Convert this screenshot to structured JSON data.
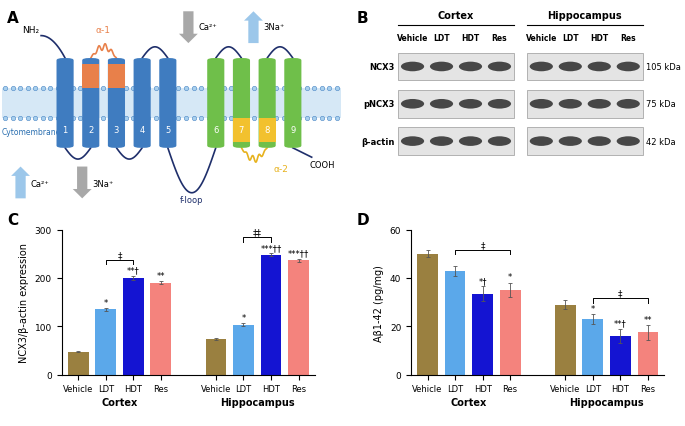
{
  "diagram": {
    "panel_label": "A",
    "n_terminus": "NH₂",
    "c_terminus": "COOH",
    "membrane": "Cytomembrane",
    "loop": "f-loop",
    "repeats": [
      "α-1",
      "α-2"
    ],
    "helices": [
      "1",
      "2",
      "3",
      "4",
      "5",
      "6",
      "7",
      "8",
      "9"
    ],
    "ions": {
      "calcium": "Ca²⁺",
      "sodium": "3Na⁺"
    }
  },
  "blot": {
    "panel_label": "B",
    "groups": [
      "Cortex",
      "Hippocampus"
    ],
    "lanes": [
      "Vehicle",
      "LDT",
      "HDT",
      "Res"
    ],
    "rows": [
      {
        "name": "NCX3",
        "size": "105 kDa"
      },
      {
        "name": "pNCX3",
        "size": "75 kDa"
      },
      {
        "name": "β-actin",
        "size": "42 kDa"
      }
    ]
  },
  "chart_data": [
    {
      "type": "bar",
      "panel_label": "C",
      "y_label": "NCX3/β-actin expression",
      "categories": [
        "Vehicle",
        "LDT",
        "HDT",
        "Res"
      ],
      "colors": [
        "#9a8040",
        "#5ba8ea",
        "#1414d2",
        "#f4837d"
      ],
      "ylim": [
        0,
        300
      ],
      "yticks": [
        0,
        100,
        200,
        300
      ],
      "grid": false,
      "groups": [
        {
          "name": "Cortex",
          "values": [
            48,
            135,
            200,
            190
          ],
          "errors": [
            2,
            3,
            4,
            3
          ],
          "significance": [
            null,
            "*",
            "**†",
            "**"
          ],
          "comparisons": [
            {
              "from": "LDT",
              "to": "HDT",
              "label": "‡"
            }
          ]
        },
        {
          "name": "Hippocampus",
          "values": [
            73,
            103,
            248,
            237
          ],
          "errors": [
            2,
            3,
            3,
            3
          ],
          "significance": [
            null,
            "*",
            "***††",
            "***††"
          ],
          "comparisons": [
            {
              "from": "LDT",
              "to": "HDT",
              "label": "‡‡"
            }
          ]
        }
      ]
    },
    {
      "type": "bar",
      "panel_label": "D",
      "y_label": "Aβ1-42 (pg/mg)",
      "categories": [
        "Vehicle",
        "LDT",
        "HDT",
        "Res"
      ],
      "colors": [
        "#9a8040",
        "#5ba8ea",
        "#1414d2",
        "#f4837d"
      ],
      "ylim": [
        0,
        60
      ],
      "yticks": [
        0,
        20,
        40,
        60
      ],
      "grid": false,
      "groups": [
        {
          "name": "Cortex",
          "values": [
            50,
            43,
            33.5,
            35
          ],
          "errors": [
            1.5,
            2,
            3,
            3
          ],
          "significance": [
            null,
            null,
            "*†",
            "*"
          ],
          "comparisons": [
            {
              "from": "LDT",
              "to": "Res",
              "label": "‡"
            }
          ]
        },
        {
          "name": "Hippocampus",
          "values": [
            29,
            23,
            16,
            17.5
          ],
          "errors": [
            2,
            2,
            3,
            3
          ],
          "significance": [
            null,
            "*",
            "**†",
            "**"
          ],
          "comparisons": [
            {
              "from": "LDT",
              "to": "Res",
              "label": "‡"
            }
          ]
        }
      ]
    }
  ]
}
